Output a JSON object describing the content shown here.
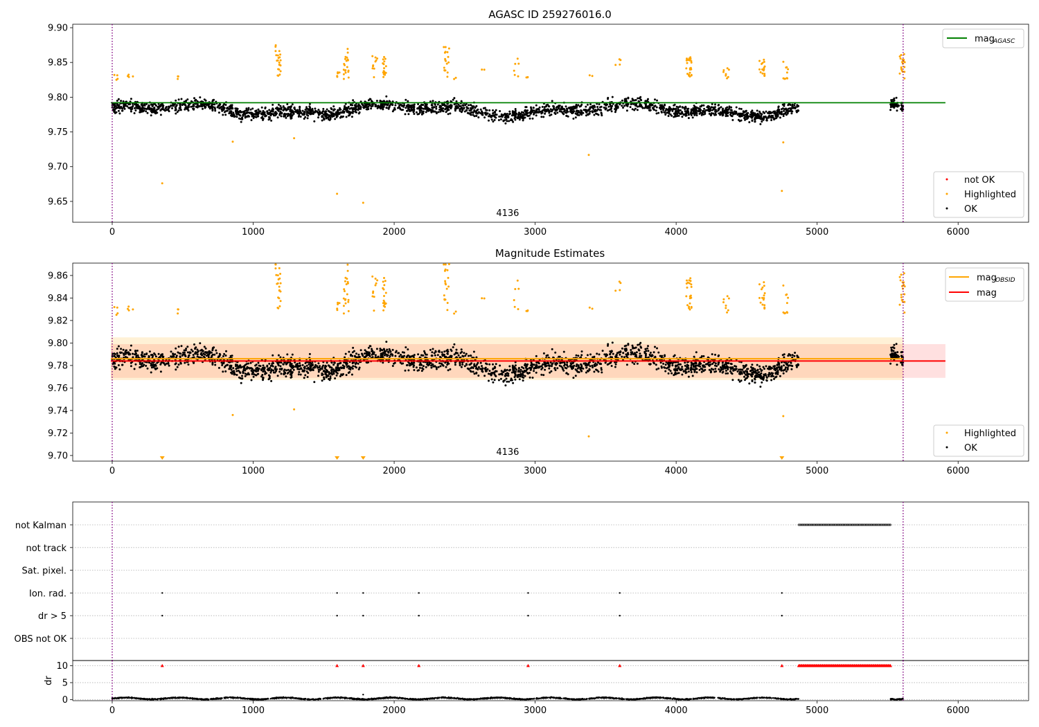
{
  "colors": {
    "ok": "#000000",
    "highlighted": "#ffa500",
    "not_ok": "#ff0000",
    "mag_agasc_line": "#008000",
    "mag_line": "#ff0000",
    "mag_obsid_line": "#ffa500",
    "mag_band": "#ff0000",
    "mag_obsid_band": "#ffa500",
    "obs_boundary": "#800080",
    "grid": "#b0b0b0"
  },
  "chart_data": [
    {
      "type": "scatter",
      "title": "AGASC ID 259276016.0",
      "xlim": [
        -280,
        6500
      ],
      "ylim": [
        9.62,
        9.905
      ],
      "x_ticks": [
        0,
        1000,
        2000,
        3000,
        4000,
        5000,
        6000
      ],
      "x_tick_labels": [
        "0",
        "1000",
        "2000",
        "3000",
        "4000",
        "5000",
        "6000"
      ],
      "y_ticks": [
        9.65,
        9.7,
        9.75,
        9.8,
        9.85,
        9.9
      ],
      "y_tick_labels": [
        "9.65",
        "9.70",
        "9.75",
        "9.80",
        "9.85",
        "9.90"
      ],
      "obs_boundaries": [
        0,
        5610
      ],
      "annotation": {
        "text": "4136",
        "x": 2805
      },
      "reference_line": {
        "name": "mag_AGASC",
        "value": 9.792,
        "x_range": [
          -10,
          5910
        ]
      },
      "legend_top": [
        {
          "label": "mag",
          "sub": "AGASC",
          "kind": "line",
          "color": "#008000"
        }
      ],
      "legend_bottom": [
        {
          "label": "not OK",
          "kind": "marker",
          "color": "#ff0000"
        },
        {
          "label": "Highlighted",
          "kind": "marker",
          "color": "#ffa500"
        },
        {
          "label": "OK",
          "kind": "marker",
          "color": "#000000"
        }
      ],
      "series": {
        "ok_segments": [
          {
            "x0": 0,
            "x1": 4870,
            "base": 9.782,
            "spread": 0.016,
            "count": 2400
          },
          {
            "x0": 5520,
            "x1": 5610,
            "base": 9.782,
            "spread": 0.015,
            "count": 60
          }
        ],
        "highlighted_clusters": [
          {
            "x": 20,
            "y0": 9.822,
            "y1": 9.832,
            "count": 4
          },
          {
            "x": 130,
            "y0": 9.828,
            "y1": 9.836,
            "count": 4
          },
          {
            "x": 480,
            "y0": 9.826,
            "y1": 9.83,
            "count": 3
          },
          {
            "x": 1175,
            "y0": 9.828,
            "y1": 9.875,
            "count": 22
          },
          {
            "x": 1600,
            "y0": 9.826,
            "y1": 9.84,
            "count": 5
          },
          {
            "x": 1660,
            "y0": 9.826,
            "y1": 9.87,
            "count": 20
          },
          {
            "x": 1860,
            "y0": 9.826,
            "y1": 9.86,
            "count": 10
          },
          {
            "x": 1935,
            "y0": 9.828,
            "y1": 9.858,
            "count": 16
          },
          {
            "x": 2370,
            "y0": 9.826,
            "y1": 9.874,
            "count": 18
          },
          {
            "x": 2440,
            "y0": 9.826,
            "y1": 9.828,
            "count": 2
          },
          {
            "x": 2620,
            "y0": 9.838,
            "y1": 9.84,
            "count": 2
          },
          {
            "x": 2870,
            "y0": 9.826,
            "y1": 9.856,
            "count": 6
          },
          {
            "x": 2950,
            "y0": 9.826,
            "y1": 9.832,
            "count": 3
          },
          {
            "x": 3390,
            "y0": 9.83,
            "y1": 9.833,
            "count": 2
          },
          {
            "x": 3590,
            "y0": 9.84,
            "y1": 9.856,
            "count": 4
          },
          {
            "x": 4090,
            "y0": 9.828,
            "y1": 9.858,
            "count": 22
          },
          {
            "x": 4355,
            "y0": 9.826,
            "y1": 9.85,
            "count": 8
          },
          {
            "x": 4610,
            "y0": 9.83,
            "y1": 9.856,
            "count": 16
          },
          {
            "x": 4780,
            "y0": 9.826,
            "y1": 9.854,
            "count": 10
          },
          {
            "x": 5605,
            "y0": 9.826,
            "y1": 9.864,
            "count": 18
          }
        ],
        "highlighted_singles": [
          {
            "x": 355,
            "y": 9.676
          },
          {
            "x": 855,
            "y": 9.736
          },
          {
            "x": 1290,
            "y": 9.741
          },
          {
            "x": 1595,
            "y": 9.661
          },
          {
            "x": 1780,
            "y": 9.648
          },
          {
            "x": 3380,
            "y": 9.717
          },
          {
            "x": 4750,
            "y": 9.665
          },
          {
            "x": 4760,
            "y": 9.735
          }
        ]
      }
    },
    {
      "type": "scatter",
      "title": "Magnitude Estimates",
      "xlim": [
        -280,
        6500
      ],
      "ylim": [
        9.695,
        9.871
      ],
      "x_ticks": [
        0,
        1000,
        2000,
        3000,
        4000,
        5000,
        6000
      ],
      "x_tick_labels": [
        "0",
        "1000",
        "2000",
        "3000",
        "4000",
        "5000",
        "6000"
      ],
      "y_ticks": [
        9.7,
        9.72,
        9.74,
        9.76,
        9.78,
        9.8,
        9.82,
        9.84,
        9.86
      ],
      "y_tick_labels": [
        "9.70",
        "9.72",
        "9.74",
        "9.76",
        "9.78",
        "9.80",
        "9.82",
        "9.84",
        "9.86"
      ],
      "obs_boundaries": [
        0,
        5610
      ],
      "annotation": {
        "text": "4136",
        "x": 2805
      },
      "mag": {
        "value": 9.784,
        "band": [
          9.769,
          9.799
        ],
        "x_range": [
          -10,
          5910
        ]
      },
      "mag_obsid": {
        "value": 9.786,
        "band": [
          9.767,
          9.805
        ],
        "x_range": [
          -10,
          5610
        ]
      },
      "legend_top": [
        {
          "label": "mag",
          "sub": "OBSID",
          "kind": "line",
          "color": "#ffa500"
        },
        {
          "label": "mag",
          "sub": "",
          "kind": "line",
          "color": "#ff0000"
        }
      ],
      "legend_bottom": [
        {
          "label": "Highlighted",
          "kind": "marker",
          "color": "#ffa500"
        },
        {
          "label": "OK",
          "kind": "marker",
          "color": "#000000"
        }
      ],
      "below_range_markers_x": [
        355,
        1595,
        1780,
        4750
      ]
    },
    {
      "type": "scatter",
      "title": "",
      "xlim": [
        -280,
        6500
      ],
      "x_ticks": [
        0,
        1000,
        2000,
        3000,
        4000,
        5000,
        6000
      ],
      "x_tick_labels": [
        "0",
        "1000",
        "2000",
        "3000",
        "4000",
        "5000",
        "6000"
      ],
      "obs_boundaries": [
        0,
        5610
      ],
      "flag_rows": [
        "not Kalman",
        "not track",
        "Sat. pixel.",
        "Ion. rad.",
        "dr > 5",
        "OBS not OK"
      ],
      "flags": {
        "not Kalman": {
          "x_range": [
            4870,
            5520
          ],
          "count": 80
        },
        "Ion. rad.": {
          "x": [
            355,
            1595,
            1780,
            2175,
            2950,
            3600,
            4750
          ]
        },
        "dr > 5": {
          "x": [
            355,
            1595,
            1780,
            2175,
            2950,
            3600,
            4750
          ]
        }
      },
      "dr": {
        "ylabel": "dr",
        "ylim": [
          -0.3,
          11.5
        ],
        "y_ticks": [
          0,
          5,
          10
        ],
        "y_tick_labels": [
          "0",
          "5",
          "10"
        ],
        "clip_value": 10,
        "clipped_x": [
          355,
          1595,
          1780,
          2175,
          2950,
          3600,
          4750
        ],
        "clipped_range": [
          4870,
          5520
        ],
        "base_segments": [
          [
            0,
            4870
          ],
          [
            5520,
            5610
          ]
        ]
      }
    }
  ]
}
